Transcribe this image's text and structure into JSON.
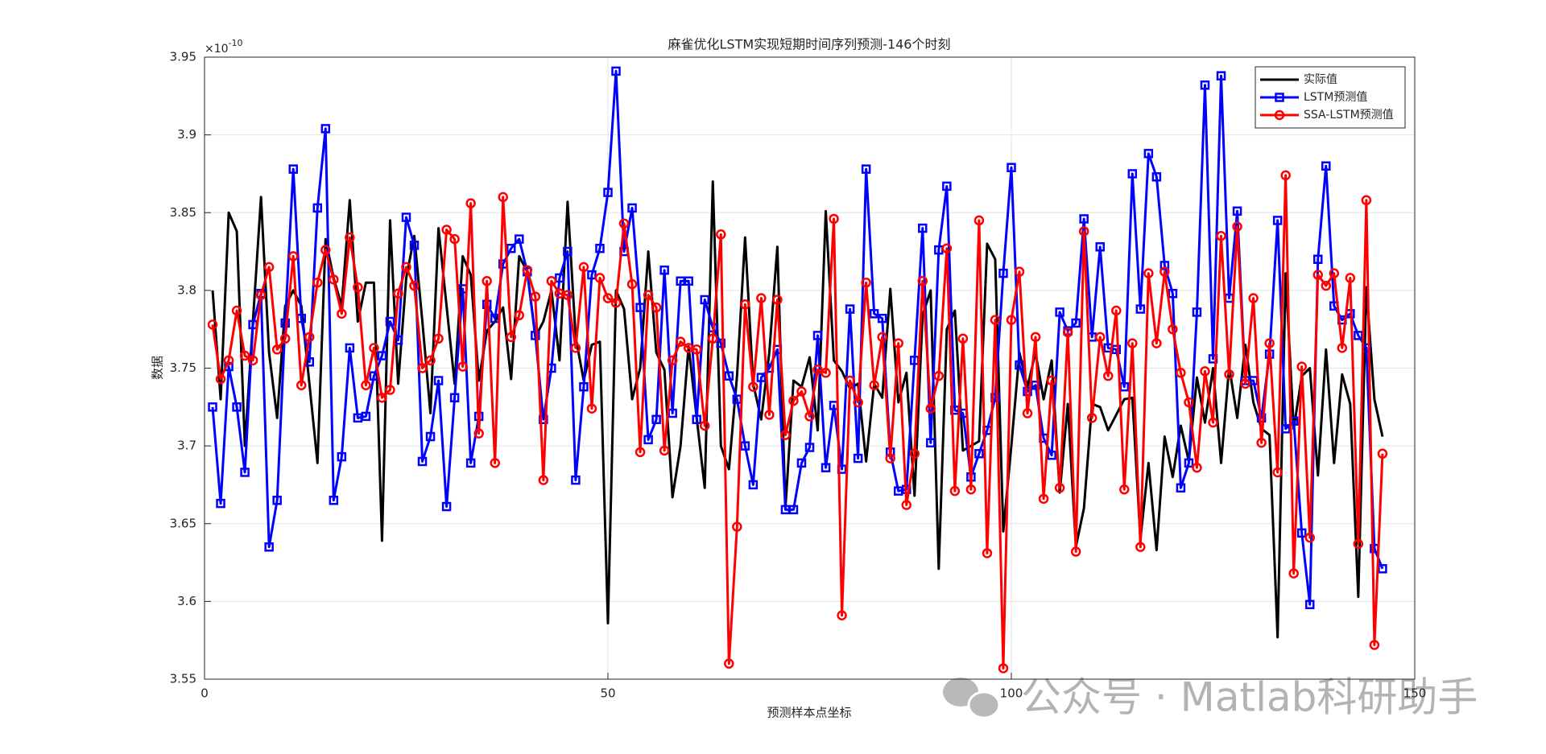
{
  "chart_data": {
    "type": "line",
    "title": "麻雀优化LSTM实现短期时间序列预测-146个时刻",
    "x_label": "预测样本点坐标",
    "y_label": "数据",
    "y_multiplier": {
      "base": "×10",
      "exponent": "-10"
    },
    "watermark": "公众号 · Matlab科研助手",
    "xlim": [
      0,
      150
    ],
    "xticks": [
      0,
      50,
      100,
      150
    ],
    "ylim": [
      3.55,
      3.95
    ],
    "yticks": [
      3.55,
      3.6,
      3.65,
      3.7,
      3.75,
      3.8,
      3.85,
      3.9,
      3.95
    ],
    "grid": true,
    "legend": "northeast",
    "x": [
      1,
      2,
      3,
      4,
      5,
      6,
      7,
      8,
      9,
      10,
      11,
      12,
      13,
      14,
      15,
      16,
      17,
      18,
      19,
      20,
      21,
      22,
      23,
      24,
      25,
      26,
      27,
      28,
      29,
      30,
      31,
      32,
      33,
      34,
      35,
      36,
      37,
      38,
      39,
      40,
      41,
      42,
      43,
      44,
      45,
      46,
      47,
      48,
      49,
      50,
      51,
      52,
      53,
      54,
      55,
      56,
      57,
      58,
      59,
      60,
      61,
      62,
      63,
      64,
      65,
      66,
      67,
      68,
      69,
      70,
      71,
      72,
      73,
      74,
      75,
      76,
      77,
      78,
      79,
      80,
      81,
      82,
      83,
      84,
      85,
      86,
      87,
      88,
      89,
      90,
      91,
      92,
      93,
      94,
      95,
      96,
      97,
      98,
      99,
      100,
      101,
      102,
      103,
      104,
      105,
      106,
      107,
      108,
      109,
      110,
      111,
      112,
      113,
      114,
      115,
      116,
      117,
      118,
      119,
      120,
      121,
      122,
      123,
      124,
      125,
      126,
      127,
      128,
      129,
      130,
      131,
      132,
      133,
      134,
      135,
      136,
      137,
      138,
      139,
      140,
      141,
      142,
      143,
      144,
      145,
      146
    ],
    "series": [
      {
        "name": "实际值",
        "color": "#000000",
        "marker": "none",
        "values": [
          3.8,
          3.73,
          3.85,
          3.838,
          3.7,
          3.78,
          3.86,
          3.76,
          3.718,
          3.79,
          3.8,
          3.79,
          3.74,
          3.689,
          3.833,
          3.808,
          3.79,
          3.858,
          3.78,
          3.805,
          3.805,
          3.639,
          3.845,
          3.74,
          3.808,
          3.835,
          3.78,
          3.721,
          3.84,
          3.79,
          3.74,
          3.822,
          3.81,
          3.742,
          3.774,
          3.78,
          3.789,
          3.743,
          3.822,
          3.812,
          3.77,
          3.78,
          3.8,
          3.755,
          3.857,
          3.77,
          3.742,
          3.765,
          3.767,
          3.586,
          3.8,
          3.788,
          3.73,
          3.75,
          3.825,
          3.76,
          3.749,
          3.667,
          3.7,
          3.764,
          3.718,
          3.673,
          3.87,
          3.7,
          3.685,
          3.745,
          3.834,
          3.74,
          3.717,
          3.76,
          3.828,
          3.66,
          3.742,
          3.738,
          3.757,
          3.71,
          3.851,
          3.755,
          3.748,
          3.737,
          3.74,
          3.69,
          3.74,
          3.731,
          3.801,
          3.728,
          3.747,
          3.668,
          3.784,
          3.8,
          3.621,
          3.775,
          3.787,
          3.697,
          3.7,
          3.703,
          3.83,
          3.82,
          3.645,
          3.7,
          3.76,
          3.738,
          3.76,
          3.73,
          3.755,
          3.67,
          3.727,
          3.635,
          3.66,
          3.727,
          3.725,
          3.71,
          3.72,
          3.73,
          3.731,
          3.64,
          3.689,
          3.633,
          3.706,
          3.68,
          3.713,
          3.69,
          3.744,
          3.715,
          3.75,
          3.689,
          3.751,
          3.718,
          3.765,
          3.728,
          3.711,
          3.707,
          3.577,
          3.811,
          3.711,
          3.745,
          3.75,
          3.681,
          3.762,
          3.689,
          3.746,
          3.727,
          3.603,
          3.802,
          3.73,
          3.706
        ]
      },
      {
        "name": "LSTM预测值",
        "color": "#0000ff",
        "marker": "square",
        "values": [
          3.725,
          3.663,
          3.751,
          3.725,
          3.683,
          3.778,
          3.798,
          3.635,
          3.665,
          3.779,
          3.878,
          3.782,
          3.754,
          3.853,
          3.904,
          3.665,
          3.693,
          3.763,
          3.718,
          3.719,
          3.745,
          3.758,
          3.78,
          3.768,
          3.847,
          3.829,
          3.69,
          3.706,
          3.742,
          3.661,
          3.731,
          3.801,
          3.689,
          3.719,
          3.791,
          3.782,
          3.817,
          3.827,
          3.833,
          3.812,
          3.771,
          3.717,
          3.75,
          3.808,
          3.825,
          3.678,
          3.738,
          3.81,
          3.827,
          3.863,
          3.941,
          3.825,
          3.853,
          3.789,
          3.704,
          3.717,
          3.813,
          3.721,
          3.806,
          3.806,
          3.717,
          3.794,
          3.776,
          3.766,
          3.745,
          3.73,
          3.7,
          3.675,
          3.744,
          3.75,
          3.762,
          3.659,
          3.659,
          3.689,
          3.699,
          3.771,
          3.686,
          3.726,
          3.685,
          3.788,
          3.692,
          3.878,
          3.785,
          3.782,
          3.696,
          3.671,
          3.672,
          3.755,
          3.84,
          3.702,
          3.826,
          3.867,
          3.723,
          3.721,
          3.68,
          3.695,
          3.71,
          3.731,
          3.811,
          3.879,
          3.752,
          3.735,
          3.739,
          3.705,
          3.694,
          3.786,
          3.774,
          3.779,
          3.846,
          3.77,
          3.828,
          3.763,
          3.762,
          3.738,
          3.875,
          3.788,
          3.888,
          3.873,
          3.816,
          3.798,
          3.673,
          3.689,
          3.786,
          3.932,
          3.756,
          3.938,
          3.795,
          3.851,
          3.742,
          3.742,
          3.718,
          3.759,
          3.845,
          3.711,
          3.716,
          3.644,
          3.598,
          3.82,
          3.88,
          3.79,
          3.781,
          3.785,
          3.771,
          3.763,
          3.634,
          3.621
        ]
      },
      {
        "name": "SSA-LSTM预测值",
        "color": "#ff0000",
        "marker": "circle",
        "values": [
          3.778,
          3.743,
          3.755,
          3.787,
          3.758,
          3.755,
          3.797,
          3.815,
          3.762,
          3.769,
          3.822,
          3.739,
          3.77,
          3.805,
          3.826,
          3.807,
          3.785,
          3.834,
          3.802,
          3.739,
          3.763,
          3.731,
          3.736,
          3.798,
          3.815,
          3.803,
          3.75,
          3.755,
          3.769,
          3.839,
          3.833,
          3.751,
          3.856,
          3.708,
          3.806,
          3.689,
          3.86,
          3.77,
          3.784,
          3.813,
          3.796,
          3.678,
          3.806,
          3.798,
          3.797,
          3.763,
          3.815,
          3.724,
          3.808,
          3.795,
          3.792,
          3.843,
          3.804,
          3.696,
          3.797,
          3.789,
          3.697,
          3.755,
          3.767,
          3.763,
          3.762,
          3.713,
          3.769,
          3.836,
          3.56,
          3.648,
          3.791,
          3.738,
          3.795,
          3.72,
          3.794,
          3.707,
          3.729,
          3.735,
          3.719,
          3.749,
          3.747,
          3.846,
          3.591,
          3.742,
          3.728,
          3.805,
          3.739,
          3.77,
          3.692,
          3.766,
          3.662,
          3.695,
          3.806,
          3.724,
          3.745,
          3.827,
          3.671,
          3.769,
          3.672,
          3.845,
          3.631,
          3.781,
          3.557,
          3.781,
          3.812,
          3.721,
          3.77,
          3.666,
          3.742,
          3.673,
          3.773,
          3.632,
          3.838,
          3.718,
          3.77,
          3.745,
          3.787,
          3.672,
          3.766,
          3.635,
          3.811,
          3.766,
          3.812,
          3.775,
          3.747,
          3.728,
          3.686,
          3.748,
          3.715,
          3.835,
          3.746,
          3.841,
          3.74,
          3.795,
          3.702,
          3.766,
          3.683,
          3.874,
          3.618,
          3.751,
          3.641,
          3.81,
          3.803,
          3.811,
          3.763,
          3.808,
          3.637,
          3.858,
          3.572,
          3.695
        ]
      }
    ]
  }
}
